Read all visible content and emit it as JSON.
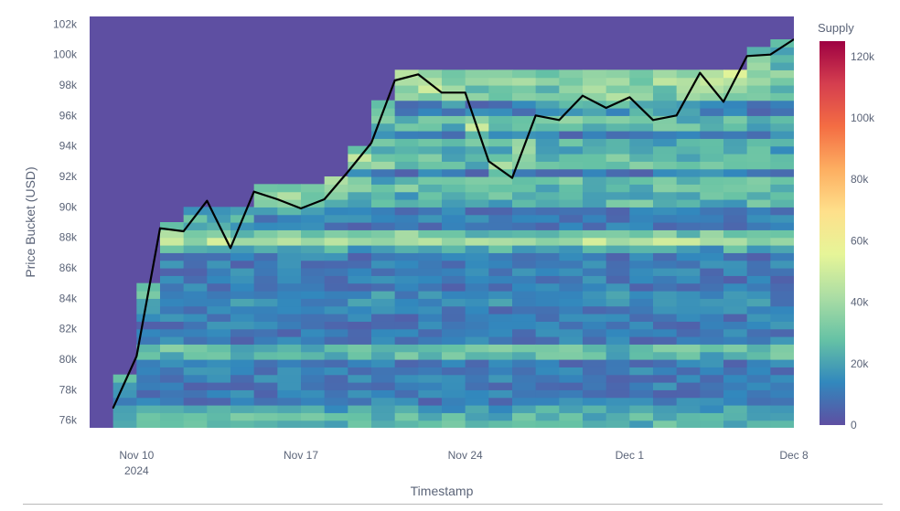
{
  "chart_data": {
    "type": "heatmap",
    "title": "",
    "xlabel": "Timestamp",
    "ylabel": "Price Bucket (USD)",
    "x_range": [
      "2024-11-08",
      "2024-12-08"
    ],
    "x_ticks": [
      {
        "date": "2024-11-10",
        "label": "Nov 10",
        "sublabel": "2024"
      },
      {
        "date": "2024-11-17",
        "label": "Nov 17",
        "sublabel": ""
      },
      {
        "date": "2024-11-24",
        "label": "Nov 24",
        "sublabel": ""
      },
      {
        "date": "2024-12-01",
        "label": "Dec 1",
        "sublabel": ""
      },
      {
        "date": "2024-12-08",
        "label": "Dec 8",
        "sublabel": ""
      }
    ],
    "y_range": [
      75500,
      102500
    ],
    "y_ticks": [
      {
        "value": 76000,
        "label": "76k"
      },
      {
        "value": 78000,
        "label": "78k"
      },
      {
        "value": 80000,
        "label": "80k"
      },
      {
        "value": 82000,
        "label": "82k"
      },
      {
        "value": 84000,
        "label": "84k"
      },
      {
        "value": 86000,
        "label": "86k"
      },
      {
        "value": 88000,
        "label": "88k"
      },
      {
        "value": 90000,
        "label": "90k"
      },
      {
        "value": 92000,
        "label": "92k"
      },
      {
        "value": 94000,
        "label": "94k"
      },
      {
        "value": 96000,
        "label": "96k"
      },
      {
        "value": 98000,
        "label": "98k"
      },
      {
        "value": 100000,
        "label": "100k"
      },
      {
        "value": 102000,
        "label": "102k"
      }
    ],
    "colorbar": {
      "title": "Supply",
      "range": [
        0,
        125000
      ],
      "ticks": [
        {
          "value": 0,
          "label": "0"
        },
        {
          "value": 20000,
          "label": "20k"
        },
        {
          "value": 40000,
          "label": "40k"
        },
        {
          "value": 60000,
          "label": "60k"
        },
        {
          "value": 80000,
          "label": "80k"
        },
        {
          "value": 100000,
          "label": "100k"
        },
        {
          "value": 120000,
          "label": "120k"
        }
      ],
      "colorscale": [
        "#5e4fa2",
        "#3288bd",
        "#66c2a5",
        "#abdda4",
        "#e6f598",
        "#fee08b",
        "#fdae61",
        "#f46d43",
        "#d53e4f",
        "#9e0142"
      ]
    },
    "bucket_start": 75500,
    "bucket_size": 500,
    "time_step_days": 1,
    "supply_bands": [
      {
        "price": 76000,
        "supply": 15000
      },
      {
        "price": 80500,
        "supply": 48000
      },
      {
        "price": 84000,
        "supply": 12000
      },
      {
        "price": 87500,
        "supply": 30000
      },
      {
        "price": 88000,
        "supply": 52000
      },
      {
        "price": 90500,
        "supply": 40000
      },
      {
        "price": 91500,
        "supply": 45000
      },
      {
        "price": 93000,
        "supply": 50000
      },
      {
        "price": 94000,
        "supply": 35000
      },
      {
        "price": 95500,
        "supply": 40000
      },
      {
        "price": 97500,
        "supply": 55000
      },
      {
        "price": 98500,
        "supply": 70000
      },
      {
        "price": 99500,
        "supply": 45000
      }
    ],
    "series": [
      {
        "type": "line",
        "color": "#000000",
        "x": [
          "2024-11-09",
          "2024-11-10",
          "2024-11-11",
          "2024-11-12",
          "2024-11-13",
          "2024-11-14",
          "2024-11-15",
          "2024-11-16",
          "2024-11-17",
          "2024-11-18",
          "2024-11-19",
          "2024-11-20",
          "2024-11-21",
          "2024-11-22",
          "2024-11-23",
          "2024-11-24",
          "2024-11-25",
          "2024-11-26",
          "2024-11-27",
          "2024-11-28",
          "2024-11-29",
          "2024-11-30",
          "2024-12-01",
          "2024-12-02",
          "2024-12-03",
          "2024-12-04",
          "2024-12-05",
          "2024-12-06",
          "2024-12-07",
          "2024-12-08"
        ],
        "values": [
          76800,
          80200,
          88600,
          88400,
          90400,
          87300,
          91000,
          90500,
          89900,
          90500,
          92300,
          94200,
          98300,
          98700,
          97500,
          97500,
          93000,
          91900,
          96000,
          95700,
          97300,
          96500,
          97200,
          95700,
          96000,
          98800,
          96900,
          99900,
          100000,
          101000
        ]
      }
    ]
  }
}
